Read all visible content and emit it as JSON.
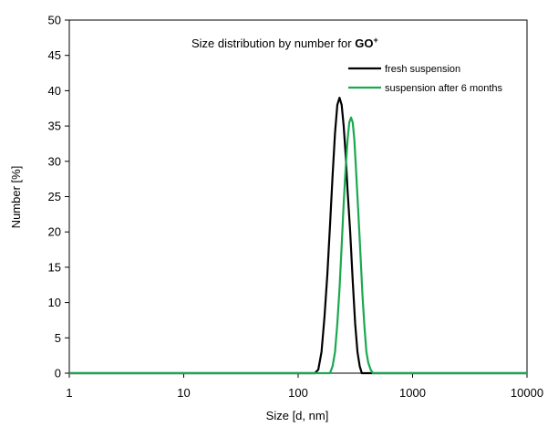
{
  "chart_data": {
    "type": "line",
    "title_prefix": "Size distribution by number for ",
    "title_bold": "GO",
    "title_sup": "+",
    "xlabel": "Size [d, nm]",
    "ylabel": "Number [%]",
    "x_scale": "log",
    "xlim": [
      1,
      10000
    ],
    "ylim": [
      0,
      50
    ],
    "x_ticks": [
      1,
      10,
      100,
      1000,
      10000
    ],
    "y_ticks": [
      0,
      5,
      10,
      15,
      20,
      25,
      30,
      35,
      40,
      45,
      50
    ],
    "grid": false,
    "legend_position": "top-right",
    "series": [
      {
        "name": "fresh suspension",
        "color": "#000000",
        "points": [
          [
            1,
            0
          ],
          [
            140,
            0
          ],
          [
            150,
            0.5
          ],
          [
            160,
            3
          ],
          [
            170,
            8
          ],
          [
            180,
            14
          ],
          [
            190,
            21
          ],
          [
            200,
            28
          ],
          [
            210,
            34
          ],
          [
            220,
            38
          ],
          [
            230,
            39
          ],
          [
            240,
            38
          ],
          [
            250,
            35
          ],
          [
            260,
            31
          ],
          [
            270,
            26
          ],
          [
            285,
            20
          ],
          [
            300,
            13
          ],
          [
            315,
            7
          ],
          [
            330,
            3
          ],
          [
            345,
            1
          ],
          [
            360,
            0
          ],
          [
            10000,
            0
          ]
        ]
      },
      {
        "name": "suspension after 6 months",
        "color": "#1aa850",
        "points": [
          [
            1,
            0
          ],
          [
            190,
            0
          ],
          [
            200,
            1
          ],
          [
            210,
            3
          ],
          [
            220,
            7
          ],
          [
            230,
            12
          ],
          [
            240,
            18
          ],
          [
            250,
            24
          ],
          [
            260,
            29
          ],
          [
            270,
            33
          ],
          [
            280,
            35.5
          ],
          [
            290,
            36.2
          ],
          [
            300,
            35.5
          ],
          [
            310,
            33
          ],
          [
            320,
            29
          ],
          [
            335,
            23
          ],
          [
            350,
            17
          ],
          [
            365,
            11
          ],
          [
            380,
            6.5
          ],
          [
            395,
            3
          ],
          [
            410,
            1.5
          ],
          [
            430,
            0.5
          ],
          [
            450,
            0
          ],
          [
            10000,
            0
          ]
        ]
      }
    ]
  }
}
